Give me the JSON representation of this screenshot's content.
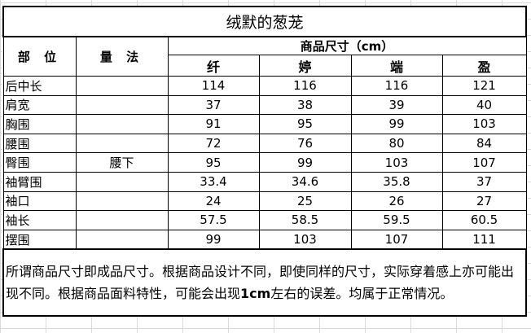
{
  "title": "绒默的葱茏",
  "headers": {
    "part": "部 位",
    "method": "量 法",
    "size_group": "商品尺寸（cm）",
    "sizes": [
      "纤",
      "婷",
      "端",
      "盈"
    ]
  },
  "rows": [
    {
      "part": "后中长",
      "method": "",
      "values": [
        "114",
        "116",
        "116",
        "121"
      ]
    },
    {
      "part": "肩宽",
      "method": "",
      "values": [
        "37",
        "38",
        "39",
        "40"
      ]
    },
    {
      "part": "胸围",
      "method": "",
      "values": [
        "91",
        "95",
        "99",
        "103"
      ]
    },
    {
      "part": "腰围",
      "method": "",
      "values": [
        "72",
        "76",
        "80",
        "84"
      ]
    },
    {
      "part": "臀围",
      "method": "腰下",
      "values": [
        "95",
        "99",
        "103",
        "107"
      ]
    },
    {
      "part": "袖臂围",
      "method": "",
      "values": [
        "33.4",
        "34.6",
        "35.8",
        "37"
      ]
    },
    {
      "part": "袖口",
      "method": "",
      "values": [
        "24",
        "25",
        "26",
        "27"
      ]
    },
    {
      "part": "袖长",
      "method": "",
      "values": [
        "57.5",
        "58.5",
        "59.5",
        "60.5"
      ]
    },
    {
      "part": "摆围",
      "method": "",
      "values": [
        "99",
        "103",
        "107",
        "111"
      ]
    }
  ],
  "note": {
    "before": "所谓商品尺寸即成品尺寸。根据商品设计不同，即使同样的尺寸，实际穿着感上亦可能出现不同。根据商品面料特性，可能会出现",
    "bold": "1cm",
    "after": "左右的误差。均属于正常情况。"
  }
}
